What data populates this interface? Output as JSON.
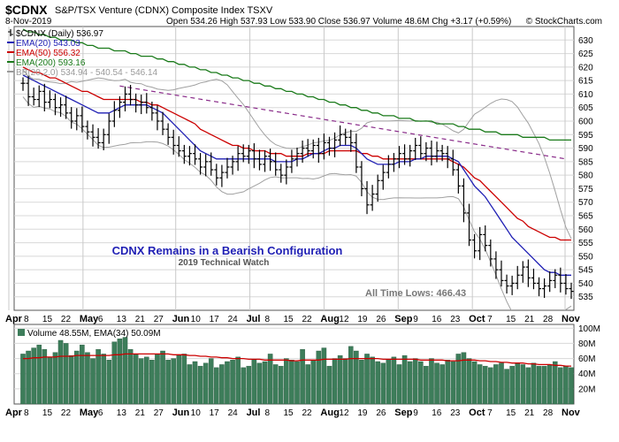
{
  "header": {
    "symbol": "$CDNX",
    "name": "S&P/TSX Venture (CDNX) Composite Index  TSXV",
    "date": "8-Nov-2019",
    "ohlc": "Open 534.26  High 537.93  Low 533.90  Close 536.97  Volume 48.6M  Chg +3.17 (+0.59%)",
    "credit": "© StockCharts.com"
  },
  "legend": [
    {
      "label": "$CDNX (Daily) 536.97",
      "color": "#000000",
      "kind": "bar"
    },
    {
      "label": "EMA(20) 543.03",
      "color": "#1f1fb4",
      "kind": "line"
    },
    {
      "label": "EMA(50) 556.32",
      "color": "#cc0000",
      "kind": "line"
    },
    {
      "label": "EMA(200) 593.16",
      "color": "#1a7a1a",
      "kind": "line"
    },
    {
      "label": "BB(20,2.0) 534.94 - 540.54 - 546.14",
      "color": "#9a9a9a",
      "kind": "line"
    }
  ],
  "annotations": {
    "headline": "CDNX Remains in a Bearish Configuration",
    "subline": "2019 Technical Watch",
    "low_note": "All Time Lows: 466.43"
  },
  "volume_legend": "Volume 48.55M, EMA(34) 50.09M",
  "colors": {
    "bars": "#000000",
    "ema20": "#1f1fb4",
    "ema50": "#cc0000",
    "ema200": "#1a7a1a",
    "bb": "#a0a0a0",
    "trendline": "#8a2c8a",
    "volume_fill": "#3d7d5a",
    "volume_ema": "#cc0000",
    "headline": "#1f1fb4",
    "grid": "#d8d8d8"
  },
  "chart_data": {
    "type": "ohlc",
    "ylim": [
      530,
      635
    ],
    "y_ticks": [
      535,
      540,
      545,
      550,
      555,
      560,
      565,
      570,
      575,
      580,
      585,
      590,
      595,
      600,
      605,
      610,
      615,
      620,
      625,
      630
    ],
    "x_tick_labels": [
      "Apr",
      "8",
      "15",
      "22",
      "May",
      "6",
      "13",
      "21",
      "27",
      "Jun",
      "10",
      "17",
      "24",
      "Jul",
      "8",
      "15",
      "22",
      "Aug",
      "12",
      "19",
      "26",
      "Sep",
      "9",
      "16",
      "23",
      "Oct",
      "7",
      "15",
      "21",
      "28",
      "Nov"
    ],
    "month_labels": [
      "Apr",
      "May",
      "Jun",
      "Jul",
      "Aug",
      "Sep",
      "Oct",
      "Nov"
    ],
    "close": [
      614,
      609,
      608,
      611,
      607,
      608,
      605,
      606,
      603,
      600,
      602,
      598,
      596,
      594,
      592,
      595,
      600,
      604,
      607,
      610,
      608,
      606,
      607,
      605,
      603,
      600,
      597,
      594,
      591,
      589,
      587,
      588,
      586,
      583,
      585,
      582,
      579,
      581,
      583,
      585,
      588,
      587,
      589,
      586,
      584,
      587,
      585,
      582,
      580,
      583,
      586,
      588,
      590,
      589,
      591,
      588,
      592,
      590,
      593,
      595,
      594,
      592,
      583,
      575,
      569,
      573,
      578,
      581,
      584,
      586,
      588,
      586,
      589,
      591,
      588,
      590,
      587,
      589,
      588,
      586,
      582,
      576,
      566,
      556,
      552,
      558,
      554,
      549,
      545,
      541,
      539,
      540,
      543,
      546,
      542,
      540,
      538,
      539,
      541,
      543,
      540,
      538,
      537
    ],
    "ema20": [
      617,
      616,
      615,
      614,
      613,
      612,
      611,
      610,
      609,
      608,
      607,
      606,
      605,
      604,
      603,
      603,
      603,
      604,
      605,
      606,
      606,
      606,
      606,
      606,
      605,
      604,
      603,
      601,
      599,
      597,
      595,
      593,
      591,
      589,
      588,
      587,
      586,
      586,
      586,
      586,
      586,
      586,
      586,
      586,
      586,
      586,
      586,
      585,
      585,
      585,
      585,
      586,
      586,
      587,
      588,
      588,
      589,
      590,
      590,
      591,
      591,
      591,
      590,
      588,
      586,
      585,
      584,
      584,
      584,
      584,
      585,
      585,
      585,
      586,
      586,
      587,
      587,
      587,
      587,
      587,
      586,
      585,
      582,
      579,
      576,
      574,
      572,
      569,
      566,
      563,
      560,
      557,
      555,
      553,
      551,
      549,
      547,
      545,
      544,
      544,
      543,
      543,
      543
    ],
    "ema50": [
      620,
      619,
      618,
      618,
      617,
      616,
      616,
      615,
      614,
      613,
      612,
      611,
      611,
      610,
      609,
      608,
      608,
      608,
      608,
      608,
      608,
      608,
      607,
      607,
      606,
      606,
      605,
      604,
      603,
      602,
      601,
      600,
      599,
      597,
      596,
      595,
      594,
      593,
      592,
      591,
      591,
      590,
      590,
      589,
      589,
      589,
      588,
      588,
      588,
      587,
      587,
      587,
      587,
      588,
      588,
      588,
      588,
      589,
      589,
      589,
      589,
      589,
      589,
      588,
      588,
      587,
      587,
      586,
      586,
      586,
      586,
      586,
      586,
      586,
      586,
      586,
      586,
      586,
      586,
      586,
      585,
      584,
      583,
      581,
      579,
      578,
      576,
      574,
      572,
      570,
      568,
      566,
      564,
      563,
      561,
      560,
      559,
      558,
      557,
      557,
      556,
      556,
      556
    ],
    "ema200": [
      634,
      633,
      633,
      632,
      632,
      631,
      631,
      630,
      630,
      630,
      629,
      629,
      628,
      628,
      627,
      627,
      627,
      626,
      626,
      626,
      625,
      625,
      624,
      624,
      624,
      623,
      623,
      622,
      622,
      621,
      621,
      620,
      620,
      619,
      619,
      618,
      618,
      617,
      617,
      616,
      616,
      615,
      615,
      614,
      614,
      613,
      613,
      612,
      612,
      611,
      611,
      610,
      610,
      609,
      609,
      608,
      608,
      607,
      607,
      606,
      606,
      605,
      605,
      604,
      604,
      603,
      603,
      602,
      602,
      602,
      601,
      601,
      601,
      600,
      600,
      600,
      600,
      599,
      599,
      599,
      599,
      598,
      598,
      597,
      597,
      597,
      596,
      596,
      596,
      595,
      595,
      595,
      595,
      594,
      594,
      594,
      594,
      594,
      593,
      593,
      593,
      593,
      593
    ],
    "trendline": {
      "from": {
        "index": 18,
        "value": 613
      },
      "to": {
        "index": 101,
        "value": 586
      }
    },
    "volume": {
      "ylim": [
        0,
        105
      ],
      "y_ticks": [
        20,
        40,
        60,
        80,
        100
      ],
      "y_tick_labels": [
        "20M",
        "40M",
        "60M",
        "80M",
        "100M"
      ],
      "values": [
        66,
        70,
        74,
        78,
        72,
        62,
        68,
        84,
        80,
        64,
        70,
        78,
        68,
        60,
        72,
        66,
        58,
        82,
        86,
        88,
        72,
        66,
        60,
        62,
        58,
        66,
        70,
        58,
        60,
        64,
        66,
        52,
        56,
        50,
        54,
        60,
        48,
        52,
        56,
        58,
        62,
        48,
        50,
        58,
        54,
        56,
        66,
        52,
        50,
        60,
        58,
        56,
        72,
        52,
        58,
        70,
        74,
        50,
        60,
        64,
        60,
        76,
        70,
        58,
        66,
        62,
        56,
        54,
        58,
        62,
        52,
        64,
        56,
        60,
        56,
        50,
        60,
        54,
        52,
        58,
        56,
        66,
        68,
        60,
        56,
        52,
        50,
        48,
        52,
        54,
        46,
        50,
        54,
        52,
        48,
        54,
        50,
        50,
        52,
        56,
        48,
        50,
        48
      ],
      "ema34": [
        60,
        60,
        61,
        61,
        62,
        62,
        62,
        63,
        63,
        63,
        64,
        64,
        64,
        64,
        64,
        64,
        64,
        65,
        65,
        66,
        66,
        66,
        66,
        66,
        66,
        66,
        66,
        66,
        65,
        65,
        65,
        64,
        64,
        63,
        63,
        62,
        62,
        61,
        61,
        60,
        60,
        60,
        59,
        59,
        59,
        58,
        58,
        58,
        58,
        58,
        57,
        57,
        58,
        58,
        58,
        58,
        59,
        59,
        59,
        59,
        59,
        60,
        60,
        60,
        60,
        60,
        60,
        59,
        59,
        59,
        59,
        59,
        59,
        59,
        58,
        58,
        58,
        58,
        58,
        57,
        57,
        57,
        58,
        58,
        58,
        57,
        57,
        56,
        56,
        55,
        55,
        54,
        54,
        54,
        53,
        53,
        52,
        52,
        52,
        51,
        51,
        50,
        50
      ]
    }
  }
}
